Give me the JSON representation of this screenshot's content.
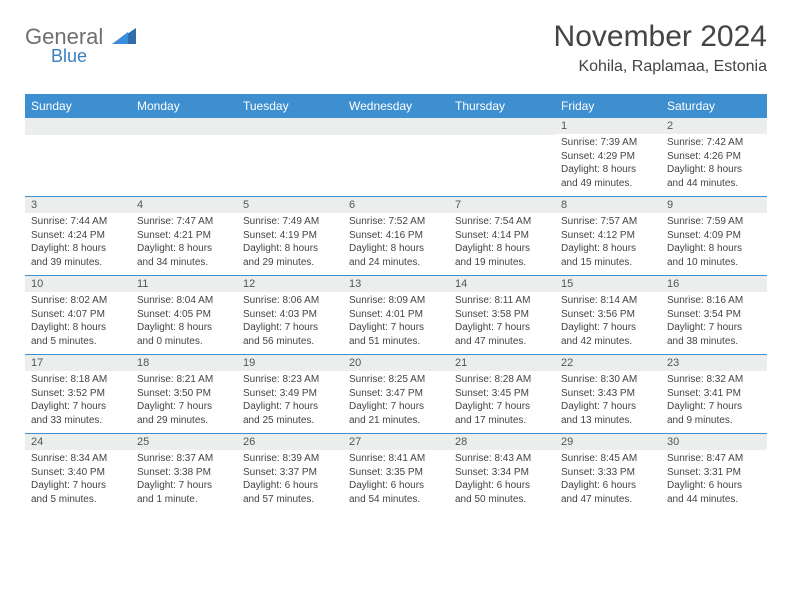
{
  "logo": {
    "text1": "General",
    "text2": "Blue"
  },
  "title": "November 2024",
  "location": "Kohila, Raplamaa, Estonia",
  "colors": {
    "header_bg": "#3e8fd0",
    "header_text": "#ffffff",
    "daynum_bg": "#eceeee",
    "text": "#444444",
    "logo_grey": "#6f6f6f",
    "logo_blue": "#3a7fc0",
    "row_border": "#3e8fd0"
  },
  "weekdays": [
    "Sunday",
    "Monday",
    "Tuesday",
    "Wednesday",
    "Thursday",
    "Friday",
    "Saturday"
  ],
  "weeks": [
    [
      null,
      null,
      null,
      null,
      null,
      {
        "n": "1",
        "sunrise": "7:39 AM",
        "sunset": "4:29 PM",
        "daylight": "8 hours and 49 minutes."
      },
      {
        "n": "2",
        "sunrise": "7:42 AM",
        "sunset": "4:26 PM",
        "daylight": "8 hours and 44 minutes."
      }
    ],
    [
      {
        "n": "3",
        "sunrise": "7:44 AM",
        "sunset": "4:24 PM",
        "daylight": "8 hours and 39 minutes."
      },
      {
        "n": "4",
        "sunrise": "7:47 AM",
        "sunset": "4:21 PM",
        "daylight": "8 hours and 34 minutes."
      },
      {
        "n": "5",
        "sunrise": "7:49 AM",
        "sunset": "4:19 PM",
        "daylight": "8 hours and 29 minutes."
      },
      {
        "n": "6",
        "sunrise": "7:52 AM",
        "sunset": "4:16 PM",
        "daylight": "8 hours and 24 minutes."
      },
      {
        "n": "7",
        "sunrise": "7:54 AM",
        "sunset": "4:14 PM",
        "daylight": "8 hours and 19 minutes."
      },
      {
        "n": "8",
        "sunrise": "7:57 AM",
        "sunset": "4:12 PM",
        "daylight": "8 hours and 15 minutes."
      },
      {
        "n": "9",
        "sunrise": "7:59 AM",
        "sunset": "4:09 PM",
        "daylight": "8 hours and 10 minutes."
      }
    ],
    [
      {
        "n": "10",
        "sunrise": "8:02 AM",
        "sunset": "4:07 PM",
        "daylight": "8 hours and 5 minutes."
      },
      {
        "n": "11",
        "sunrise": "8:04 AM",
        "sunset": "4:05 PM",
        "daylight": "8 hours and 0 minutes."
      },
      {
        "n": "12",
        "sunrise": "8:06 AM",
        "sunset": "4:03 PM",
        "daylight": "7 hours and 56 minutes."
      },
      {
        "n": "13",
        "sunrise": "8:09 AM",
        "sunset": "4:01 PM",
        "daylight": "7 hours and 51 minutes."
      },
      {
        "n": "14",
        "sunrise": "8:11 AM",
        "sunset": "3:58 PM",
        "daylight": "7 hours and 47 minutes."
      },
      {
        "n": "15",
        "sunrise": "8:14 AM",
        "sunset": "3:56 PM",
        "daylight": "7 hours and 42 minutes."
      },
      {
        "n": "16",
        "sunrise": "8:16 AM",
        "sunset": "3:54 PM",
        "daylight": "7 hours and 38 minutes."
      }
    ],
    [
      {
        "n": "17",
        "sunrise": "8:18 AM",
        "sunset": "3:52 PM",
        "daylight": "7 hours and 33 minutes."
      },
      {
        "n": "18",
        "sunrise": "8:21 AM",
        "sunset": "3:50 PM",
        "daylight": "7 hours and 29 minutes."
      },
      {
        "n": "19",
        "sunrise": "8:23 AM",
        "sunset": "3:49 PM",
        "daylight": "7 hours and 25 minutes."
      },
      {
        "n": "20",
        "sunrise": "8:25 AM",
        "sunset": "3:47 PM",
        "daylight": "7 hours and 21 minutes."
      },
      {
        "n": "21",
        "sunrise": "8:28 AM",
        "sunset": "3:45 PM",
        "daylight": "7 hours and 17 minutes."
      },
      {
        "n": "22",
        "sunrise": "8:30 AM",
        "sunset": "3:43 PM",
        "daylight": "7 hours and 13 minutes."
      },
      {
        "n": "23",
        "sunrise": "8:32 AM",
        "sunset": "3:41 PM",
        "daylight": "7 hours and 9 minutes."
      }
    ],
    [
      {
        "n": "24",
        "sunrise": "8:34 AM",
        "sunset": "3:40 PM",
        "daylight": "7 hours and 5 minutes."
      },
      {
        "n": "25",
        "sunrise": "8:37 AM",
        "sunset": "3:38 PM",
        "daylight": "7 hours and 1 minute."
      },
      {
        "n": "26",
        "sunrise": "8:39 AM",
        "sunset": "3:37 PM",
        "daylight": "6 hours and 57 minutes."
      },
      {
        "n": "27",
        "sunrise": "8:41 AM",
        "sunset": "3:35 PM",
        "daylight": "6 hours and 54 minutes."
      },
      {
        "n": "28",
        "sunrise": "8:43 AM",
        "sunset": "3:34 PM",
        "daylight": "6 hours and 50 minutes."
      },
      {
        "n": "29",
        "sunrise": "8:45 AM",
        "sunset": "3:33 PM",
        "daylight": "6 hours and 47 minutes."
      },
      {
        "n": "30",
        "sunrise": "8:47 AM",
        "sunset": "3:31 PM",
        "daylight": "6 hours and 44 minutes."
      }
    ]
  ]
}
